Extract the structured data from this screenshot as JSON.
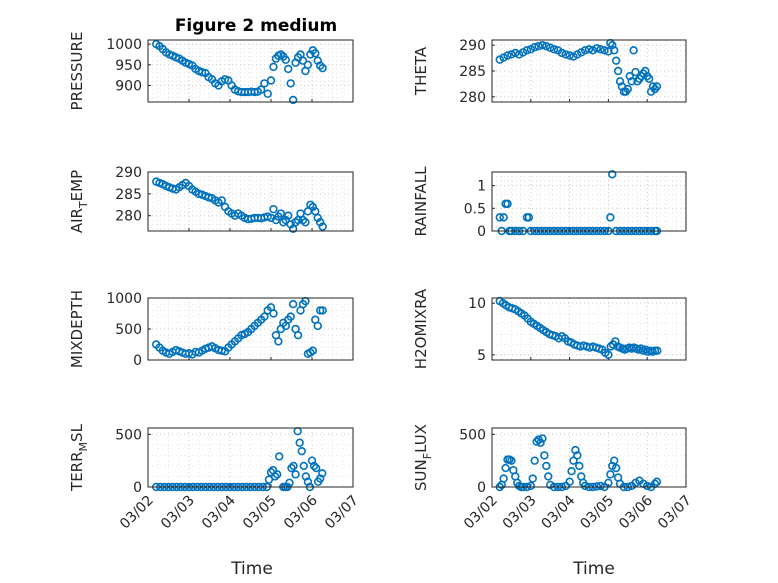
{
  "figure": {
    "title": "Figure 2 medium",
    "marker_color": "#0072BD",
    "x_ticks": [
      "03/02",
      "03/03",
      "03/04",
      "03/05",
      "03/06",
      "03/07"
    ],
    "x_label": "Time"
  },
  "chart_data": [
    {
      "id": "pressure",
      "type": "scatter",
      "ylabel": {
        "main": "PRESSURE",
        "sub": "",
        "tail": ""
      },
      "ylim": [
        860,
        1010
      ],
      "yticks": [
        900,
        950,
        1000
      ],
      "xlim": [
        0,
        5
      ],
      "xticks_shown": false,
      "x": [
        0.2,
        0.28,
        0.36,
        0.44,
        0.52,
        0.6,
        0.68,
        0.76,
        0.84,
        0.92,
        1.0,
        1.08,
        1.16,
        1.24,
        1.32,
        1.4,
        1.48,
        1.56,
        1.64,
        1.72,
        1.8,
        1.88,
        1.96,
        2.04,
        2.12,
        2.2,
        2.28,
        2.36,
        2.44,
        2.52,
        2.6,
        2.68,
        2.76,
        2.84,
        2.92,
        3.0,
        3.06,
        3.12,
        3.18,
        3.24,
        3.3,
        3.36,
        3.42,
        3.48,
        3.54,
        3.6,
        3.66,
        3.72,
        3.78,
        3.84,
        3.9,
        3.96,
        4.02,
        4.08,
        4.14,
        4.2,
        4.26
      ],
      "y": [
        1000,
        995,
        988,
        980,
        975,
        972,
        968,
        965,
        960,
        955,
        952,
        948,
        940,
        935,
        932,
        930,
        920,
        915,
        905,
        900,
        910,
        915,
        912,
        900,
        890,
        886,
        884,
        884,
        884,
        885,
        884,
        885,
        890,
        905,
        880,
        912,
        945,
        965,
        972,
        975,
        970,
        962,
        940,
        905,
        865,
        955,
        968,
        975,
        960,
        935,
        950,
        975,
        985,
        978,
        960,
        948,
        942
      ]
    },
    {
      "id": "theta",
      "type": "scatter",
      "ylabel": {
        "main": "THETA",
        "sub": "",
        "tail": ""
      },
      "ylim": [
        279,
        291
      ],
      "yticks": [
        280,
        285,
        290
      ],
      "xlim": [
        0,
        5
      ],
      "xticks_shown": false,
      "x": [
        0.2,
        0.3,
        0.4,
        0.5,
        0.6,
        0.7,
        0.8,
        0.9,
        1.0,
        1.1,
        1.2,
        1.3,
        1.4,
        1.5,
        1.6,
        1.7,
        1.8,
        1.9,
        2.0,
        2.1,
        2.2,
        2.3,
        2.4,
        2.5,
        2.6,
        2.7,
        2.8,
        2.9,
        3.0,
        3.05,
        3.1,
        3.15,
        3.2,
        3.25,
        3.3,
        3.35,
        3.4,
        3.45,
        3.5,
        3.55,
        3.6,
        3.65,
        3.7,
        3.75,
        3.8,
        3.85,
        3.9,
        3.95,
        4.0,
        4.05,
        4.1,
        4.15,
        4.2,
        4.25
      ],
      "y": [
        287.2,
        287.6,
        288,
        288.2,
        288.5,
        288.2,
        288.6,
        289,
        289.2,
        289.6,
        289.8,
        290,
        289.8,
        289.5,
        289.2,
        289,
        288.5,
        288.2,
        288,
        287.8,
        288.2,
        288.6,
        289,
        289.2,
        289,
        289.4,
        289.2,
        289,
        288.8,
        290.4,
        290,
        289,
        287,
        285,
        283,
        282,
        281,
        281,
        281.5,
        284,
        283,
        289,
        284.8,
        283,
        283.5,
        284,
        284.5,
        285,
        284,
        283.5,
        281,
        282,
        281.5,
        282
      ]
    },
    {
      "id": "air_temp",
      "type": "scatter",
      "ylabel": {
        "main": "AIR",
        "sub": "T",
        "tail": "EMP"
      },
      "ylim": [
        276.5,
        290
      ],
      "yticks": [
        280,
        285,
        290
      ],
      "xlim": [
        0,
        5
      ],
      "xticks_shown": false,
      "x": [
        0.2,
        0.28,
        0.36,
        0.44,
        0.52,
        0.6,
        0.68,
        0.76,
        0.84,
        0.92,
        1.0,
        1.08,
        1.16,
        1.24,
        1.32,
        1.4,
        1.48,
        1.56,
        1.64,
        1.72,
        1.8,
        1.88,
        1.96,
        2.04,
        2.12,
        2.2,
        2.28,
        2.36,
        2.44,
        2.52,
        2.6,
        2.68,
        2.76,
        2.84,
        2.92,
        3.0,
        3.06,
        3.12,
        3.18,
        3.24,
        3.3,
        3.36,
        3.42,
        3.48,
        3.54,
        3.6,
        3.66,
        3.72,
        3.78,
        3.84,
        3.9,
        3.96,
        4.02,
        4.08,
        4.14,
        4.2,
        4.26
      ],
      "y": [
        287.8,
        287.5,
        287.2,
        286.8,
        286.5,
        286.2,
        286,
        286.5,
        287,
        287.5,
        286.8,
        286,
        285.5,
        285,
        284.8,
        284.5,
        284.2,
        284,
        283.5,
        283,
        283.5,
        282,
        281,
        280.5,
        280,
        280.5,
        280,
        279.5,
        279.2,
        279.3,
        279.5,
        279.5,
        279.4,
        279.6,
        279.8,
        279.5,
        281.5,
        279,
        279.8,
        280.5,
        278.5,
        279,
        280,
        278,
        277,
        278.5,
        279,
        280.5,
        279,
        278.5,
        281,
        282.5,
        282,
        281,
        279.5,
        278.5,
        277.5
      ]
    },
    {
      "id": "rainfall",
      "type": "scatter",
      "ylabel": {
        "main": "RAINFALL",
        "sub": "",
        "tail": ""
      },
      "ylim": [
        0,
        1.3
      ],
      "yticks": [
        0,
        0.5,
        1
      ],
      "xlim": [
        0,
        5
      ],
      "xticks_shown": false,
      "x": [
        0.2,
        0.25,
        0.3,
        0.35,
        0.4,
        0.45,
        0.5,
        0.6,
        0.7,
        0.8,
        0.9,
        0.95,
        1.0,
        1.1,
        1.2,
        1.3,
        1.4,
        1.5,
        1.6,
        1.7,
        1.8,
        1.9,
        2.0,
        2.1,
        2.2,
        2.3,
        2.4,
        2.5,
        2.6,
        2.7,
        2.8,
        2.9,
        3.0,
        3.05,
        3.1,
        3.2,
        3.3,
        3.4,
        3.5,
        3.6,
        3.7,
        3.8,
        3.9,
        4.0,
        4.1,
        4.2,
        4.25
      ],
      "y": [
        0.3,
        0,
        0.3,
        0.6,
        0.6,
        0,
        0,
        0,
        0,
        0,
        0.3,
        0.3,
        0,
        0,
        0,
        0,
        0,
        0,
        0,
        0,
        0,
        0,
        0,
        0,
        0,
        0,
        0,
        0,
        0,
        0,
        0,
        0,
        0,
        0.3,
        1.25,
        0,
        0,
        0,
        0,
        0,
        0,
        0,
        0,
        0,
        0,
        0,
        0
      ]
    },
    {
      "id": "mixdepth",
      "type": "scatter",
      "ylabel": {
        "main": "MIXDEPTH",
        "sub": "",
        "tail": ""
      },
      "ylim": [
        0,
        1000
      ],
      "yticks": [
        0,
        500,
        1000
      ],
      "xlim": [
        0,
        5
      ],
      "xticks_shown": false,
      "x": [
        0.2,
        0.28,
        0.36,
        0.44,
        0.52,
        0.6,
        0.68,
        0.76,
        0.84,
        0.92,
        1.0,
        1.08,
        1.16,
        1.24,
        1.32,
        1.4,
        1.48,
        1.56,
        1.64,
        1.72,
        1.8,
        1.88,
        1.96,
        2.04,
        2.12,
        2.2,
        2.28,
        2.36,
        2.44,
        2.52,
        2.6,
        2.68,
        2.76,
        2.84,
        2.92,
        3.0,
        3.06,
        3.12,
        3.18,
        3.24,
        3.3,
        3.36,
        3.42,
        3.48,
        3.54,
        3.6,
        3.66,
        3.72,
        3.78,
        3.84,
        3.9,
        3.96,
        4.02,
        4.08,
        4.14,
        4.2,
        4.26
      ],
      "y": [
        250,
        200,
        150,
        120,
        100,
        130,
        160,
        140,
        120,
        100,
        110,
        90,
        130,
        120,
        150,
        180,
        200,
        220,
        190,
        160,
        150,
        140,
        200,
        250,
        300,
        350,
        400,
        420,
        450,
        500,
        550,
        600,
        650,
        700,
        800,
        850,
        750,
        400,
        300,
        500,
        600,
        550,
        650,
        700,
        900,
        500,
        400,
        800,
        900,
        950,
        100,
        120,
        150,
        650,
        550,
        800,
        800
      ]
    },
    {
      "id": "h2omixra",
      "type": "scatter",
      "ylabel": {
        "main": "H2OMIXRA",
        "sub": "",
        "tail": ""
      },
      "ylim": [
        4.5,
        10.5
      ],
      "yticks": [
        5,
        10
      ],
      "xlim": [
        0,
        5
      ],
      "xticks_shown": false,
      "x": [
        0.2,
        0.28,
        0.36,
        0.44,
        0.52,
        0.6,
        0.68,
        0.76,
        0.84,
        0.92,
        1.0,
        1.08,
        1.16,
        1.24,
        1.32,
        1.4,
        1.48,
        1.56,
        1.64,
        1.72,
        1.8,
        1.88,
        1.96,
        2.04,
        2.12,
        2.2,
        2.28,
        2.36,
        2.44,
        2.52,
        2.6,
        2.68,
        2.76,
        2.84,
        2.92,
        3.0,
        3.06,
        3.12,
        3.18,
        3.24,
        3.3,
        3.36,
        3.42,
        3.48,
        3.54,
        3.6,
        3.66,
        3.72,
        3.78,
        3.84,
        3.9,
        3.96,
        4.02,
        4.08,
        4.14,
        4.2,
        4.26
      ],
      "y": [
        10.2,
        10,
        9.8,
        9.6,
        9.5,
        9.4,
        9.2,
        9,
        8.8,
        8.5,
        8.2,
        8,
        7.8,
        7.6,
        7.4,
        7.2,
        7,
        6.9,
        6.8,
        6.6,
        6.8,
        6.6,
        6.3,
        6.2,
        6,
        5.9,
        5.8,
        5.9,
        5.8,
        5.7,
        5.8,
        5.7,
        5.6,
        5.5,
        5.2,
        5,
        5.8,
        6,
        6.3,
        5.8,
        5.7,
        5.6,
        5.5,
        5.6,
        5.7,
        5.6,
        5.7,
        5.6,
        5.5,
        5.6,
        5.4,
        5.5,
        5.3,
        5.4,
        5.3,
        5.4,
        5.4
      ]
    },
    {
      "id": "terr_msl",
      "type": "scatter",
      "ylabel": {
        "main": "TERR",
        "sub": "M",
        "tail": "SL"
      },
      "ylim": [
        0,
        560
      ],
      "yticks": [
        0,
        500
      ],
      "xlim": [
        0,
        5
      ],
      "xticks_shown": true,
      "x": [
        0.2,
        0.3,
        0.4,
        0.5,
        0.6,
        0.7,
        0.8,
        0.9,
        1.0,
        1.1,
        1.2,
        1.3,
        1.4,
        1.5,
        1.6,
        1.7,
        1.8,
        1.9,
        2.0,
        2.1,
        2.2,
        2.3,
        2.4,
        2.5,
        2.6,
        2.7,
        2.8,
        2.9,
        2.95,
        3.0,
        3.05,
        3.1,
        3.15,
        3.2,
        3.3,
        3.35,
        3.4,
        3.45,
        3.5,
        3.55,
        3.6,
        3.65,
        3.7,
        3.75,
        3.8,
        3.85,
        3.9,
        3.95,
        4.0,
        4.05,
        4.1,
        4.15,
        4.2,
        4.25
      ],
      "y": [
        0,
        0,
        0,
        0,
        0,
        0,
        0,
        0,
        0,
        0,
        0,
        0,
        0,
        0,
        0,
        0,
        0,
        0,
        0,
        0,
        0,
        0,
        0,
        0,
        0,
        0,
        0,
        0,
        70,
        140,
        160,
        100,
        120,
        290,
        0,
        0,
        0,
        40,
        180,
        200,
        120,
        530,
        420,
        340,
        200,
        100,
        50,
        0,
        250,
        200,
        180,
        50,
        80,
        130
      ]
    },
    {
      "id": "sun_flux",
      "type": "scatter",
      "ylabel": {
        "main": "SUN",
        "sub": "F",
        "tail": "LUX"
      },
      "ylim": [
        0,
        560
      ],
      "yticks": [
        0,
        500
      ],
      "xlim": [
        0,
        5
      ],
      "xticks_shown": true,
      "x": [
        0.2,
        0.25,
        0.3,
        0.35,
        0.4,
        0.45,
        0.5,
        0.55,
        0.6,
        0.65,
        0.7,
        0.75,
        0.8,
        0.9,
        1.0,
        1.05,
        1.1,
        1.15,
        1.2,
        1.25,
        1.3,
        1.35,
        1.4,
        1.45,
        1.5,
        1.6,
        1.7,
        1.8,
        1.9,
        2.0,
        2.05,
        2.1,
        2.15,
        2.2,
        2.25,
        2.3,
        2.35,
        2.4,
        2.5,
        2.6,
        2.7,
        2.8,
        2.9,
        3.0,
        3.05,
        3.1,
        3.15,
        3.2,
        3.25,
        3.3,
        3.4,
        3.5,
        3.6,
        3.7,
        3.8,
        3.9,
        4.0,
        4.1,
        4.2,
        4.25
      ],
      "y": [
        0,
        20,
        80,
        180,
        260,
        260,
        250,
        160,
        100,
        40,
        10,
        0,
        0,
        0,
        10,
        80,
        250,
        430,
        450,
        420,
        460,
        300,
        200,
        100,
        20,
        0,
        0,
        0,
        10,
        50,
        150,
        250,
        350,
        300,
        200,
        100,
        40,
        10,
        0,
        0,
        5,
        10,
        0,
        40,
        120,
        200,
        250,
        180,
        90,
        30,
        0,
        0,
        10,
        40,
        60,
        30,
        10,
        0,
        30,
        50
      ]
    }
  ]
}
